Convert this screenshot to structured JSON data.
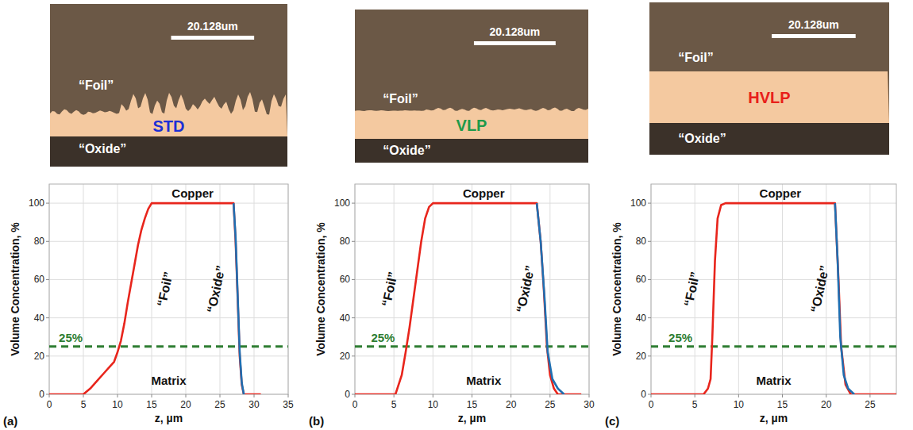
{
  "micrographs": [
    {
      "sample": "STD",
      "sample_color": "#1c2fd6",
      "foil_label": "“Foil”",
      "oxide_label": "“Oxide”",
      "scale_bar": "20.128um"
    },
    {
      "sample": "VLP",
      "sample_color": "#1f9a4a",
      "foil_label": "“Foil”",
      "oxide_label": "“Oxide”",
      "scale_bar": "20.128um"
    },
    {
      "sample": "HVLP",
      "sample_color": "#e8201a",
      "foil_label": "“Foil”",
      "oxide_label": "“Oxide”",
      "scale_bar": "20.128um"
    }
  ],
  "chart_data": [
    {
      "type": "line",
      "panel_label": "(a)",
      "x_label": "z, µm",
      "y_label": "Volume Concentration, %",
      "xlim": [
        0,
        35
      ],
      "xticks": [
        0,
        5,
        10,
        15,
        20,
        25,
        30,
        35
      ],
      "ylim": [
        0,
        110
      ],
      "yticks": [
        0,
        20,
        40,
        60,
        80,
        100
      ],
      "grid": true,
      "annotations": [
        "Copper",
        "Matrix"
      ],
      "reference_line": {
        "value": 25,
        "label": "25%",
        "color": "#2e7d32",
        "line_style": "dashed"
      },
      "series": [
        {
          "name": "“Foil”",
          "color": "#e8251c",
          "x": [
            0,
            5,
            6,
            7,
            8,
            9,
            9.5,
            10,
            10.5,
            11,
            11.5,
            12,
            12.5,
            13,
            13.5,
            14,
            14.5,
            15,
            27,
            27.3,
            27.6,
            27.9,
            28.2,
            28.5,
            31
          ],
          "values": [
            0,
            0,
            3,
            7,
            11,
            15,
            17,
            22,
            28,
            37,
            48,
            58,
            68,
            78,
            86,
            92,
            97,
            100,
            100,
            80,
            50,
            20,
            5,
            0,
            0
          ]
        },
        {
          "name": "“Oxide”",
          "color": "#1f6fb2",
          "x": [
            27,
            27.3,
            27.6,
            27.9,
            28.2,
            28.5
          ],
          "values": [
            100,
            82,
            52,
            22,
            6,
            0
          ]
        }
      ]
    },
    {
      "type": "line",
      "panel_label": "(b)",
      "x_label": "z, µm",
      "y_label": "Volume Concentration, %",
      "xlim": [
        0,
        30
      ],
      "xticks": [
        0,
        5,
        10,
        15,
        20,
        25,
        30
      ],
      "ylim": [
        0,
        110
      ],
      "yticks": [
        0,
        20,
        40,
        60,
        80,
        100
      ],
      "grid": true,
      "annotations": [
        "Copper",
        "Matrix"
      ],
      "reference_line": {
        "value": 25,
        "label": "25%",
        "color": "#2e7d32",
        "line_style": "dashed"
      },
      "series": [
        {
          "name": "“Foil”",
          "color": "#e8251c",
          "x": [
            0,
            5.2,
            6,
            6.5,
            7,
            7.5,
            8,
            8.5,
            9,
            9.5,
            10,
            23.3,
            23.8,
            24.2,
            24.6,
            25,
            25.5,
            26,
            29
          ],
          "values": [
            0,
            0,
            10,
            22,
            35,
            50,
            65,
            80,
            92,
            98,
            100,
            100,
            80,
            55,
            25,
            10,
            3,
            0,
            0
          ]
        },
        {
          "name": "“Oxide”",
          "color": "#1f6fb2",
          "x": [
            23.3,
            23.8,
            24.3,
            24.7,
            25.3,
            26,
            26.8
          ],
          "values": [
            100,
            80,
            50,
            22,
            8,
            3,
            0
          ]
        }
      ]
    },
    {
      "type": "line",
      "panel_label": "(c)",
      "x_label": "z, µm",
      "y_label": "Volume Concentration, %",
      "xlim": [
        0,
        28
      ],
      "xticks": [
        0,
        5,
        10,
        15,
        20,
        25
      ],
      "ylim": [
        0,
        110
      ],
      "yticks": [
        0,
        20,
        40,
        60,
        80,
        100
      ],
      "grid": true,
      "annotations": [
        "Copper",
        "Matrix"
      ],
      "reference_line": {
        "value": 25,
        "label": "25%",
        "color": "#2e7d32",
        "line_style": "dashed"
      },
      "series": [
        {
          "name": "“Foil”",
          "color": "#e8251c",
          "x": [
            0,
            6,
            6.5,
            6.8,
            7,
            7.3,
            7.6,
            8,
            8.5,
            21,
            21.4,
            21.7,
            22.2,
            22.8,
            28
          ],
          "values": [
            0,
            0,
            3,
            8,
            30,
            70,
            92,
            99,
            100,
            100,
            60,
            25,
            5,
            0,
            0
          ]
        },
        {
          "name": "“Oxide”",
          "color": "#1f6fb2",
          "x": [
            21,
            21.3,
            21.6,
            22,
            22.5,
            23.2
          ],
          "values": [
            100,
            70,
            30,
            10,
            3,
            0
          ]
        }
      ]
    }
  ]
}
